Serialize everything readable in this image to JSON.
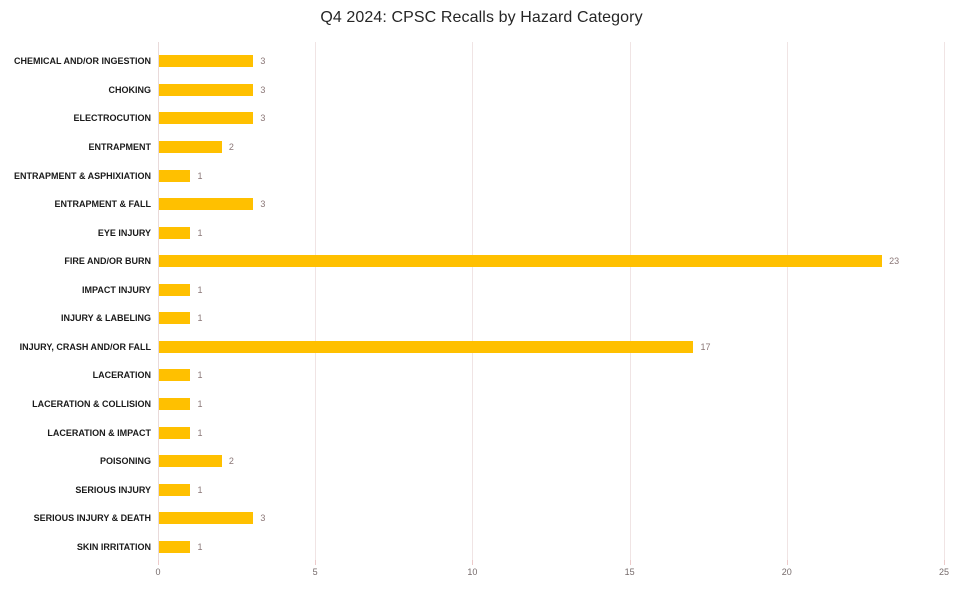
{
  "chart_data": {
    "type": "bar",
    "orientation": "horizontal",
    "title": "Q4 2024: CPSC Recalls by Hazard Category",
    "categories": [
      "CHEMICAL AND/OR INGESTION",
      "CHOKING",
      "ELECTROCUTION",
      "ENTRAPMENT",
      "ENTRAPMENT & ASPHIXIATION",
      "ENTRAPMENT & FALL",
      "EYE INJURY",
      "FIRE AND/OR BURN",
      "IMPACT INJURY",
      "INJURY & LABELING",
      "INJURY, CRASH AND/OR FALL",
      "LACERATION",
      "LACERATION & COLLISION",
      "LACERATION & IMPACT",
      "POISONING",
      "SERIOUS INJURY",
      "SERIOUS INJURY & DEATH",
      "SKIN IRRITATION"
    ],
    "values": [
      3,
      3,
      3,
      2,
      1,
      3,
      1,
      23,
      1,
      1,
      17,
      1,
      1,
      1,
      2,
      1,
      3,
      1
    ],
    "data_labels": [
      3,
      3,
      3,
      2,
      1,
      3,
      1,
      23,
      1,
      1,
      17,
      1,
      1,
      1,
      2,
      1,
      3,
      1
    ],
    "xlabel": "",
    "ylabel": "",
    "xlim": [
      0,
      25
    ],
    "x_ticks": [
      0,
      5,
      10,
      15,
      20,
      25
    ],
    "grid": true,
    "legend": false,
    "colors": {
      "bar": "#FFC000",
      "gridline": "#f0e4e4",
      "axis_line": "#e9dada",
      "tick_mark": "#eccaca",
      "data_label": "#8a7676",
      "tick_label": "#756a6a",
      "category_label": "#1a1a1a",
      "title": "#262626"
    }
  }
}
